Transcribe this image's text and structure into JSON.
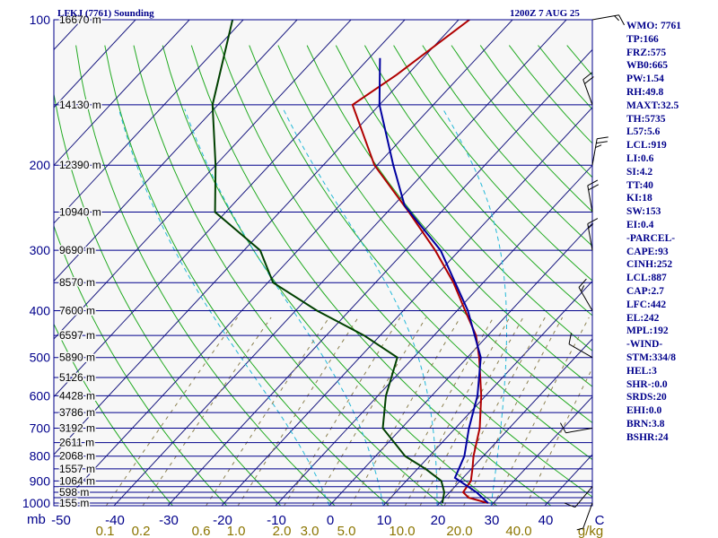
{
  "header": {
    "title": "LFKJ (7761) Sounding",
    "valid_time": "1200Z 7 AUG 25"
  },
  "stats": [
    "WMO: 7761",
    "TP:166",
    "FRZ:575",
    "WB0:665",
    "PW:1.54",
    "RH:49.8",
    "MAXT:32.5",
    "TH:5735",
    "L57:5.6",
    "LCL:919",
    "LI:0.6",
    "SI:4.2",
    "TT:40",
    "KI:18",
    "SW:153",
    "EI:0.4",
    "-PARCEL-",
    "CAPE:93",
    "CINH:252",
    "LCL:887",
    "CAP:2.7",
    "LFC:442",
    "EL:242",
    "MPL:192",
    "-WIND-",
    "STM:334/8",
    "HEL:3",
    "SHR-:0.0",
    "SRDS:20",
    "EHI:0.0",
    "BRN:3.8",
    "BSHR:24"
  ],
  "chart_data": {
    "type": "skew-t",
    "axis_unit_label": "mb",
    "pressure_ticks": [
      {
        "p": 100,
        "label": "100"
      },
      {
        "p": 200,
        "label": "200"
      },
      {
        "p": 300,
        "label": "300"
      },
      {
        "p": 400,
        "label": "400"
      },
      {
        "p": 500,
        "label": "500"
      },
      {
        "p": 600,
        "label": "600"
      },
      {
        "p": 700,
        "label": "700"
      },
      {
        "p": 800,
        "label": "800"
      },
      {
        "p": 900,
        "label": "900"
      },
      {
        "p": 1000,
        "label": "1000"
      }
    ],
    "isobars_mb": [
      100,
      150,
      200,
      250,
      300,
      350,
      400,
      450,
      500,
      550,
      600,
      650,
      700,
      750,
      800,
      850,
      900,
      925,
      950,
      975,
      1000,
      1013
    ],
    "height_labels": [
      {
        "p": 100,
        "label": "16670 m"
      },
      {
        "p": 150,
        "label": "14130 m"
      },
      {
        "p": 200,
        "label": "12390 m"
      },
      {
        "p": 250,
        "label": "10940 m"
      },
      {
        "p": 300,
        "label": "9690 m"
      },
      {
        "p": 350,
        "label": "8570 m"
      },
      {
        "p": 400,
        "label": "7600 m"
      },
      {
        "p": 450,
        "label": "6597 m"
      },
      {
        "p": 500,
        "label": "5890 m"
      },
      {
        "p": 550,
        "label": "5126 m"
      },
      {
        "p": 600,
        "label": "4428 m"
      },
      {
        "p": 650,
        "label": "3786 m"
      },
      {
        "p": 700,
        "label": "3192 m"
      },
      {
        "p": 750,
        "label": "2611 m"
      },
      {
        "p": 800,
        "label": "2068 m"
      },
      {
        "p": 850,
        "label": "1557 m"
      },
      {
        "p": 900,
        "label": "1064 m"
      },
      {
        "p": 950,
        "label": "598 m"
      },
      {
        "p": 1000,
        "label": "155 m"
      }
    ],
    "temperature_ticks": [
      "-50",
      "-40",
      "-30",
      "-20",
      "-10",
      "0",
      "10",
      "20",
      "30",
      "40",
      "C"
    ],
    "mixing_ratio_ticks": [
      "0.1",
      "0.2",
      "0.6",
      "1.0",
      "2.0",
      "3.0",
      "5.0",
      "10.0",
      "20.0",
      "40.0",
      "g/kg"
    ],
    "series": [
      {
        "name": "temperature",
        "color": "#b00000",
        "points": [
          {
            "p": 1000,
            "t": 29.0
          },
          {
            "p": 975,
            "t": 24.5
          },
          {
            "p": 950,
            "t": 22.5
          },
          {
            "p": 900,
            "t": 22.0
          },
          {
            "p": 850,
            "t": 20.2
          },
          {
            "p": 800,
            "t": 18.2
          },
          {
            "p": 700,
            "t": 14.5
          },
          {
            "p": 600,
            "t": 9.2
          },
          {
            "p": 500,
            "t": 2.2
          },
          {
            "p": 450,
            "t": -2.2
          },
          {
            "p": 400,
            "t": -8.5
          },
          {
            "p": 350,
            "t": -15.5
          },
          {
            "p": 300,
            "t": -24.5
          },
          {
            "p": 250,
            "t": -36.0
          },
          {
            "p": 200,
            "t": -50.5
          },
          {
            "p": 150,
            "t": -65.0
          },
          {
            "p": 130,
            "t": -62.0
          },
          {
            "p": 100,
            "t": -58.0
          }
        ]
      },
      {
        "name": "dewpoint",
        "color": "#004000",
        "points": [
          {
            "p": 1000,
            "t": 20.5
          },
          {
            "p": 950,
            "t": 19.0
          },
          {
            "p": 900,
            "t": 16.5
          },
          {
            "p": 850,
            "t": 11.5
          },
          {
            "p": 800,
            "t": 5.5
          },
          {
            "p": 700,
            "t": -3.5
          },
          {
            "p": 600,
            "t": -8.5
          },
          {
            "p": 500,
            "t": -13.0
          },
          {
            "p": 450,
            "t": -23.0
          },
          {
            "p": 400,
            "t": -36.0
          },
          {
            "p": 350,
            "t": -49.0
          },
          {
            "p": 300,
            "t": -57.0
          },
          {
            "p": 250,
            "t": -72.0
          },
          {
            "p": 200,
            "t": -80.0
          },
          {
            "p": 150,
            "t": -91.0
          },
          {
            "p": 100,
            "t": -102.0
          }
        ]
      },
      {
        "name": "parcel",
        "color": "#0000a0",
        "points": [
          {
            "p": 1000,
            "t": 29.0
          },
          {
            "p": 950,
            "t": 25.0
          },
          {
            "p": 887,
            "t": 18.5
          },
          {
            "p": 800,
            "t": 16.5
          },
          {
            "p": 700,
            "t": 12.5
          },
          {
            "p": 600,
            "t": 8.5
          },
          {
            "p": 500,
            "t": 2.5
          },
          {
            "p": 400,
            "t": -8.0
          },
          {
            "p": 300,
            "t": -23.5
          },
          {
            "p": 242,
            "t": -38.0
          },
          {
            "p": 200,
            "t": -47.0
          },
          {
            "p": 150,
            "t": -60.0
          },
          {
            "p": 120,
            "t": -68.0
          }
        ]
      }
    ],
    "wind_barbs": [
      {
        "p": 1000,
        "dir": 200,
        "spd": 5
      },
      {
        "p": 925,
        "dir": 220,
        "spd": 10
      },
      {
        "p": 700,
        "dir": 260,
        "spd": 10
      },
      {
        "p": 500,
        "dir": 300,
        "spd": 10
      },
      {
        "p": 400,
        "dir": 330,
        "spd": 15
      },
      {
        "p": 300,
        "dir": 350,
        "spd": 15
      },
      {
        "p": 250,
        "dir": 350,
        "spd": 20
      },
      {
        "p": 200,
        "dir": 10,
        "spd": 25
      },
      {
        "p": 150,
        "dir": 340,
        "spd": 20
      },
      {
        "p": 100,
        "dir": 80,
        "spd": 15
      }
    ]
  }
}
